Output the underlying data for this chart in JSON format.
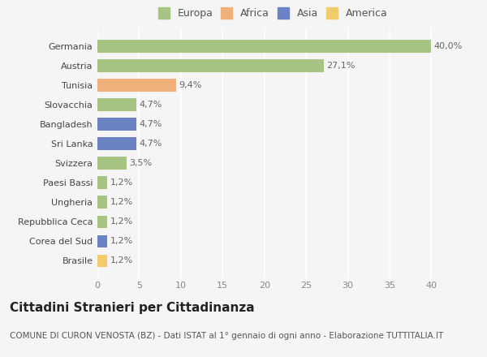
{
  "categories": [
    "Brasile",
    "Corea del Sud",
    "Repubblica Ceca",
    "Ungheria",
    "Paesi Bassi",
    "Svizzera",
    "Sri Lanka",
    "Bangladesh",
    "Slovacchia",
    "Tunisia",
    "Austria",
    "Germania"
  ],
  "values": [
    1.2,
    1.2,
    1.2,
    1.2,
    1.2,
    3.5,
    4.7,
    4.7,
    4.7,
    9.4,
    27.1,
    40.0
  ],
  "colors": [
    "#f2cb6b",
    "#6b82c4",
    "#a8c485",
    "#a8c485",
    "#a8c485",
    "#a8c485",
    "#6b82c4",
    "#6b82c4",
    "#a8c485",
    "#f0b07a",
    "#a8c485",
    "#a8c485"
  ],
  "bar_labels": [
    "1,2%",
    "1,2%",
    "1,2%",
    "1,2%",
    "1,2%",
    "3,5%",
    "4,7%",
    "4,7%",
    "4,7%",
    "9,4%",
    "27,1%",
    "40,0%"
  ],
  "legend": [
    {
      "label": "Europa",
      "color": "#a8c485"
    },
    {
      "label": "Africa",
      "color": "#f0b07a"
    },
    {
      "label": "Asia",
      "color": "#6b82c4"
    },
    {
      "label": "America",
      "color": "#f2cb6b"
    }
  ],
  "xlim": [
    0,
    42
  ],
  "xticks": [
    0,
    5,
    10,
    15,
    20,
    25,
    30,
    35,
    40
  ],
  "title": "Cittadini Stranieri per Cittadinanza",
  "subtitle": "COMUNE DI CURON VENOSTA (BZ) - Dati ISTAT al 1° gennaio di ogni anno - Elaborazione TUTTITALIA.IT",
  "background_color": "#f5f5f5",
  "grid_color": "#ffffff",
  "bar_height": 0.65,
  "title_fontsize": 11,
  "subtitle_fontsize": 7.5,
  "label_fontsize": 8,
  "tick_fontsize": 8,
  "legend_fontsize": 9
}
